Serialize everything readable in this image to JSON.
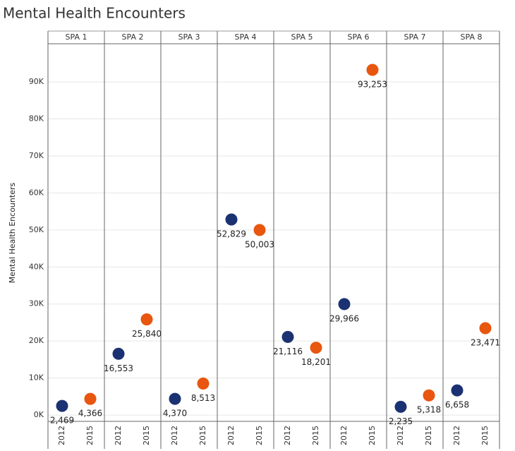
{
  "chart_data": {
    "type": "dot",
    "title": "Mental Health Encounters",
    "y_label": "Mental Health Encounters",
    "panels": [
      "SPA 1",
      "SPA 2",
      "SPA 3",
      "SPA 4",
      "SPA 5",
      "SPA 6",
      "SPA 7",
      "SPA 8"
    ],
    "series": [
      {
        "name": "2012",
        "color": "#1b3272",
        "values": [
          2469,
          16553,
          4370,
          52829,
          21116,
          29966,
          2235,
          6658
        ],
        "value_labels": [
          "2,469",
          "16,553",
          "4,370",
          "52,829",
          "21,116",
          "29,966",
          "2,235",
          "6,658"
        ]
      },
      {
        "name": "2015",
        "color": "#e8560f",
        "values": [
          4366,
          25840,
          8513,
          50003,
          18201,
          93253,
          5318,
          23471
        ],
        "value_labels": [
          "4,366",
          "25,840",
          "8,513",
          "50,003",
          "18,201",
          "93,253",
          "5,318",
          "23,471"
        ]
      }
    ],
    "ylim": [
      -1700,
      100000
    ],
    "yticks": [
      {
        "value": 0,
        "label": "0K"
      },
      {
        "value": 10000,
        "label": "10K"
      },
      {
        "value": 20000,
        "label": "20K"
      },
      {
        "value": 30000,
        "label": "30K"
      },
      {
        "value": 40000,
        "label": "40K"
      },
      {
        "value": 50000,
        "label": "50K"
      },
      {
        "value": 60000,
        "label": "60K"
      },
      {
        "value": 70000,
        "label": "70K"
      },
      {
        "value": 80000,
        "label": "80K"
      },
      {
        "value": 90000,
        "label": "90K"
      }
    ],
    "grid": true
  }
}
